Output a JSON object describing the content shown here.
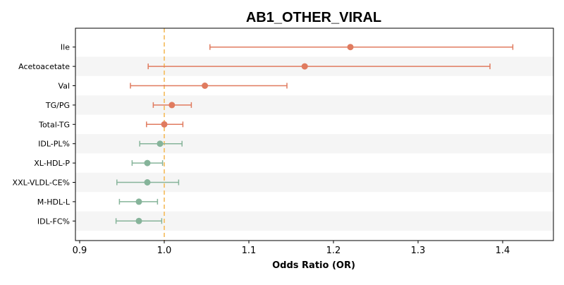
{
  "chart_data": {
    "type": "forest",
    "title": "AB1_OTHER_VIRAL",
    "xlabel": "Odds Ratio (OR)",
    "ylabel": "",
    "xlim": [
      0.895,
      1.46
    ],
    "xticks": [
      0.9,
      1.0,
      1.1,
      1.2,
      1.3,
      1.4
    ],
    "xtick_labels": [
      "0.9",
      "1.0",
      "1.1",
      "1.2",
      "1.3",
      "1.4"
    ],
    "reference_line": 1.0,
    "grid": false,
    "colors": {
      "above": "#e07b5f",
      "below": "#86b49a",
      "reference": "#f5c26b",
      "band": "#f5f5f5"
    },
    "rows": [
      {
        "label": "Ile",
        "or": 1.22,
        "ci_low": 1.054,
        "ci_high": 1.412,
        "group": "above"
      },
      {
        "label": "Acetoacetate",
        "or": 1.166,
        "ci_low": 0.981,
        "ci_high": 1.385,
        "group": "above"
      },
      {
        "label": "Val",
        "or": 1.048,
        "ci_low": 0.96,
        "ci_high": 1.145,
        "group": "above"
      },
      {
        "label": "TG/PG",
        "or": 1.009,
        "ci_low": 0.987,
        "ci_high": 1.032,
        "group": "above"
      },
      {
        "label": "Total-TG",
        "or": 1.0,
        "ci_low": 0.979,
        "ci_high": 1.022,
        "group": "above"
      },
      {
        "label": "IDL-PL%",
        "or": 0.995,
        "ci_low": 0.971,
        "ci_high": 1.021,
        "group": "below"
      },
      {
        "label": "XL-HDL-P",
        "or": 0.98,
        "ci_low": 0.962,
        "ci_high": 0.998,
        "group": "below"
      },
      {
        "label": "XXL-VLDL-CE%",
        "or": 0.98,
        "ci_low": 0.944,
        "ci_high": 1.017,
        "group": "below"
      },
      {
        "label": "M-HDL-L",
        "or": 0.97,
        "ci_low": 0.947,
        "ci_high": 0.992,
        "group": "below"
      },
      {
        "label": "IDL-FC%",
        "or": 0.97,
        "ci_low": 0.943,
        "ci_high": 0.997,
        "group": "below"
      }
    ]
  }
}
